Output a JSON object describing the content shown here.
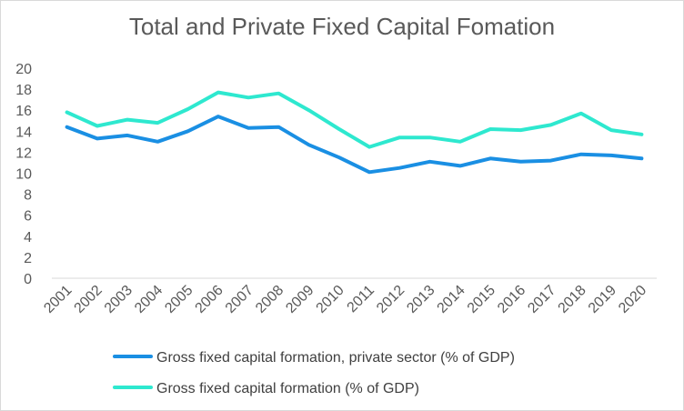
{
  "chart_data": {
    "type": "line",
    "title": "Total and Private Fixed Capital Fomation",
    "xlabel": "",
    "ylabel": "",
    "categories": [
      "2001",
      "2002",
      "2003",
      "2004",
      "2005",
      "2006",
      "2007",
      "2008",
      "2009",
      "2010",
      "2011",
      "2012",
      "2013",
      "2014",
      "2015",
      "2016",
      "2017",
      "2018",
      "2019",
      "2020"
    ],
    "ylim": [
      0,
      20
    ],
    "yticks": [
      0,
      2,
      4,
      6,
      8,
      10,
      12,
      14,
      16,
      18,
      20
    ],
    "grid": false,
    "legend_position": "bottom",
    "series": [
      {
        "name": "Gross fixed capital formation, private sector (% of GDP)",
        "color": "#1a8fe3",
        "values": [
          14.4,
          13.3,
          13.6,
          13.0,
          14.0,
          15.4,
          14.3,
          14.4,
          12.7,
          11.5,
          10.1,
          10.5,
          11.1,
          10.7,
          11.4,
          11.1,
          11.2,
          11.8,
          11.7,
          11.4
        ]
      },
      {
        "name": "Gross fixed capital formation (% of GDP)",
        "color": "#2ee8cf",
        "values": [
          15.8,
          14.5,
          15.1,
          14.8,
          16.1,
          17.7,
          17.2,
          17.6,
          16.0,
          14.2,
          12.5,
          13.4,
          13.4,
          13.0,
          14.2,
          14.1,
          14.6,
          15.7,
          14.1,
          13.7
        ]
      }
    ]
  }
}
